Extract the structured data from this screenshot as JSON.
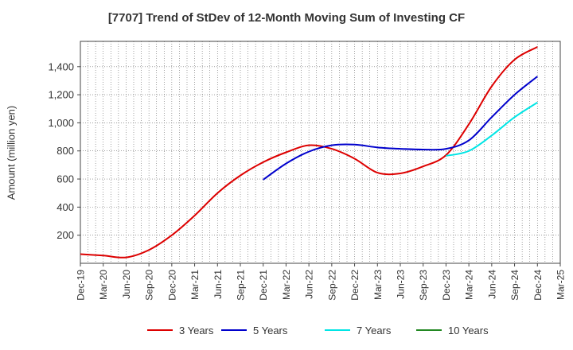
{
  "chart_data": {
    "type": "line",
    "title": "[7707]  Trend of StDev of 12-Month Moving Sum of Investing CF",
    "xlabel": "",
    "ylabel": "Amount (million yen)",
    "ylim": [
      0,
      1580
    ],
    "yticks": [
      200,
      400,
      600,
      800,
      1000,
      1200,
      1400
    ],
    "ytick_labels": [
      "200",
      "400",
      "600",
      "800",
      "1,000",
      "1,200",
      "1,400"
    ],
    "x": [
      "Dec-19",
      "Mar-20",
      "Jun-20",
      "Sep-20",
      "Dec-20",
      "Mar-21",
      "Jun-21",
      "Sep-21",
      "Dec-21",
      "Mar-22",
      "Jun-22",
      "Sep-22",
      "Dec-22",
      "Mar-23",
      "Jun-23",
      "Sep-23",
      "Dec-23",
      "Mar-24",
      "Jun-24",
      "Sep-24",
      "Dec-24",
      "Mar-25"
    ],
    "grid": true,
    "legend_position": "bottom",
    "series": [
      {
        "name": "3 Years",
        "color": "#dd0000",
        "values": [
          65,
          55,
          42,
          95,
          200,
          340,
          500,
          625,
          720,
          790,
          840,
          815,
          745,
          645,
          640,
          690,
          770,
          990,
          1260,
          1450,
          1540,
          null
        ]
      },
      {
        "name": "5 Years",
        "color": "#0000cc",
        "values": [
          null,
          null,
          null,
          null,
          null,
          null,
          null,
          null,
          595,
          710,
          795,
          840,
          845,
          825,
          815,
          810,
          815,
          875,
          1040,
          1200,
          1330,
          null
        ]
      },
      {
        "name": "7 Years",
        "color": "#00e5e5",
        "values": [
          null,
          null,
          null,
          null,
          null,
          null,
          null,
          null,
          null,
          null,
          null,
          null,
          null,
          null,
          null,
          null,
          765,
          800,
          910,
          1040,
          1145,
          null
        ]
      },
      {
        "name": "10 Years",
        "color": "#228822",
        "values": [
          null,
          null,
          null,
          null,
          null,
          null,
          null,
          null,
          null,
          null,
          null,
          null,
          null,
          null,
          null,
          null,
          null,
          null,
          null,
          null,
          null,
          null
        ]
      }
    ]
  }
}
